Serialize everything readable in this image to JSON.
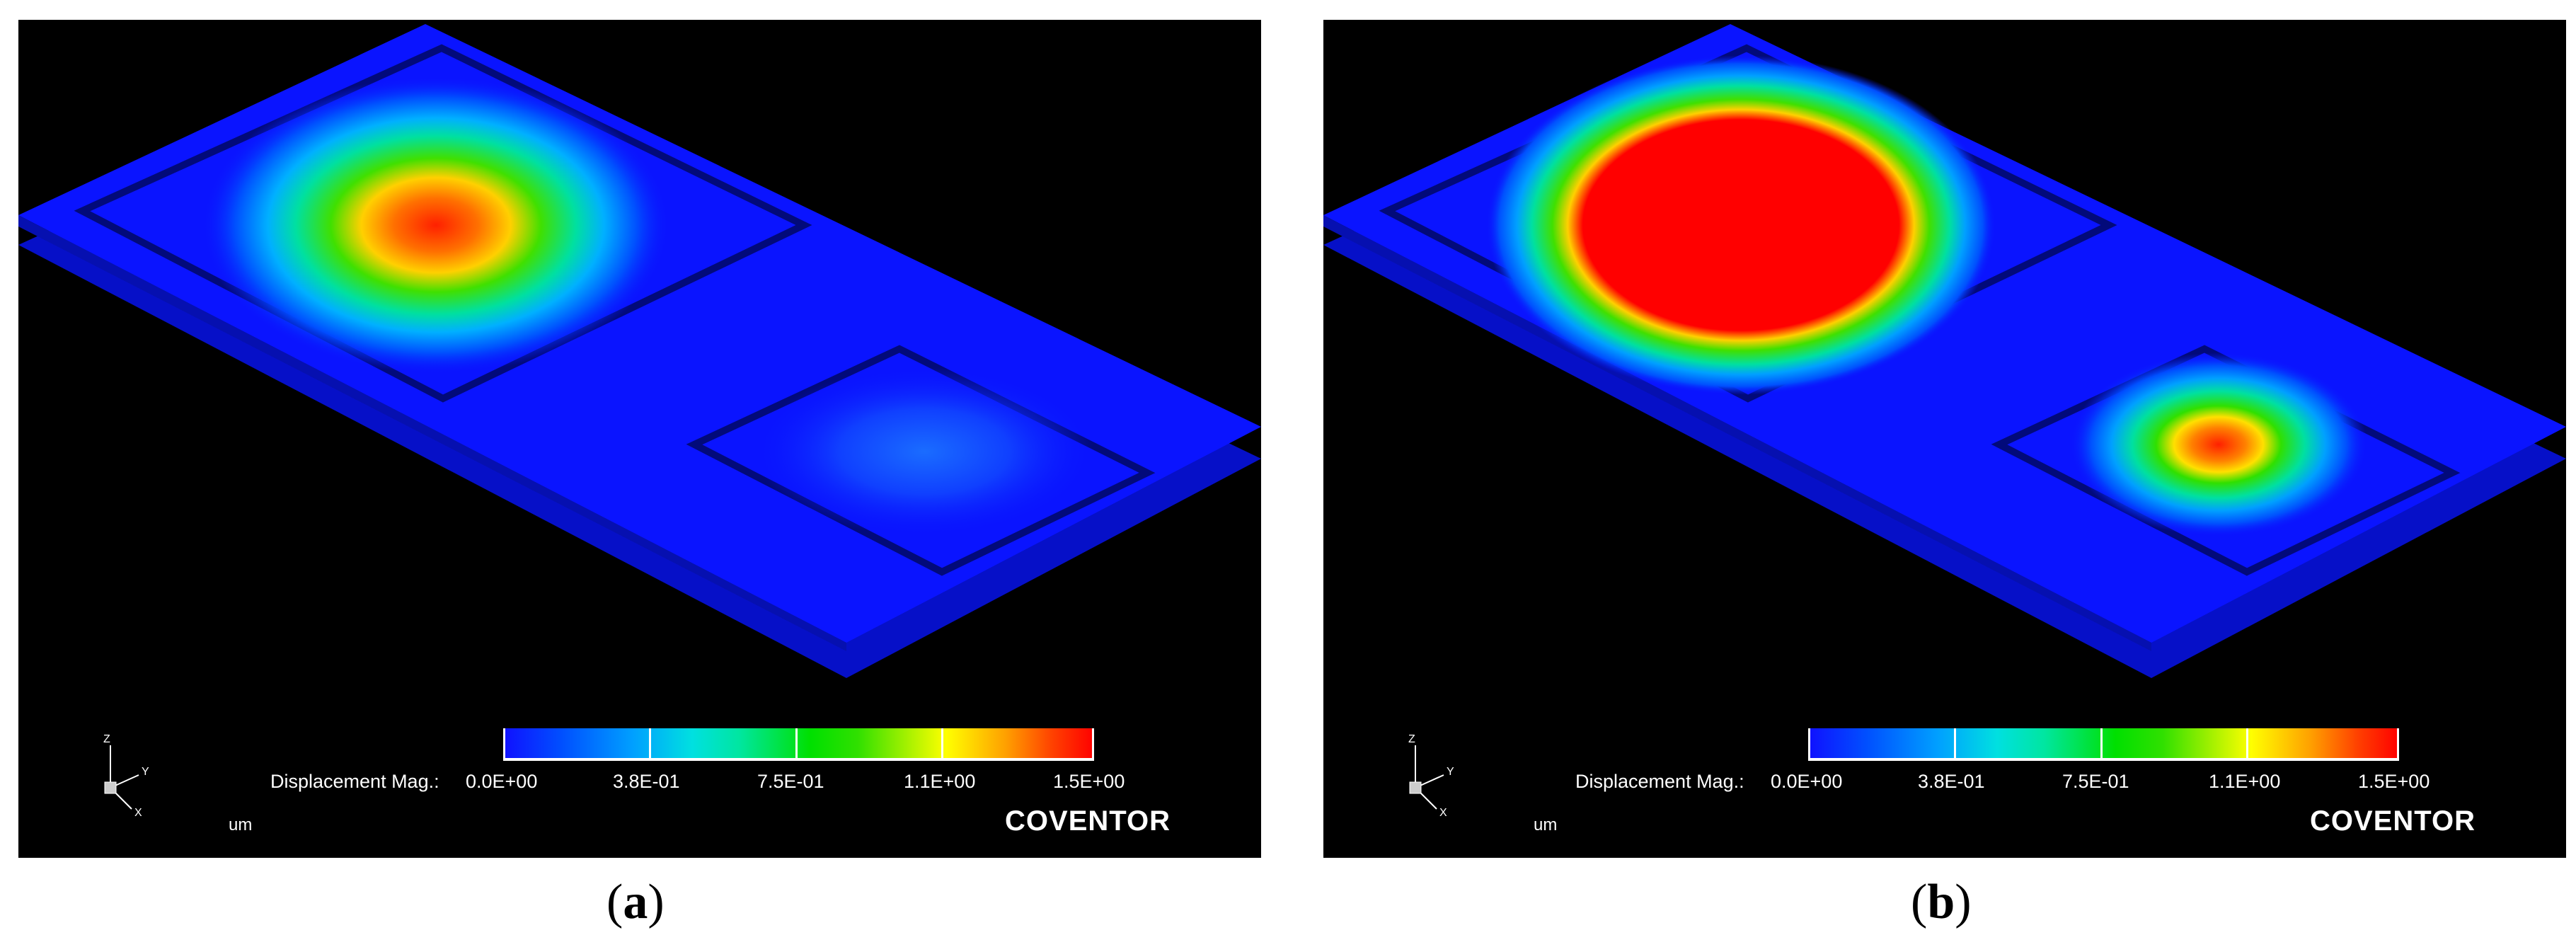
{
  "panels": [
    {
      "id": "a",
      "caption_letter": "a",
      "colorbar": {
        "title": "Displacement Mag.:",
        "tick_labels": [
          "0.0E+00",
          "3.8E-01",
          "7.5E-01",
          "1.1E+00",
          "1.5E+00"
        ],
        "units": "um"
      },
      "brand": "COVENTOR",
      "axes": {
        "z": "Z",
        "y": "Y",
        "x": "X"
      },
      "membranes": {
        "large_peak_color": "#ff2000",
        "small_peak_color": "#0a3cff"
      }
    },
    {
      "id": "b",
      "caption_letter": "b",
      "colorbar": {
        "title": "Displacement Mag.:",
        "tick_labels": [
          "0.0E+00",
          "3.8E-01",
          "7.5E-01",
          "1.1E+00",
          "1.5E+00"
        ],
        "units": "um"
      },
      "brand": "COVENTOR",
      "axes": {
        "z": "Z",
        "y": "Y",
        "x": "X"
      },
      "membranes": {
        "large_peak_color": "#ff0000",
        "small_peak_color": "#ff2000"
      }
    }
  ],
  "colors": {
    "background": "#000000",
    "plate": "#0a14ff",
    "plate_dark": "#0610b8"
  }
}
